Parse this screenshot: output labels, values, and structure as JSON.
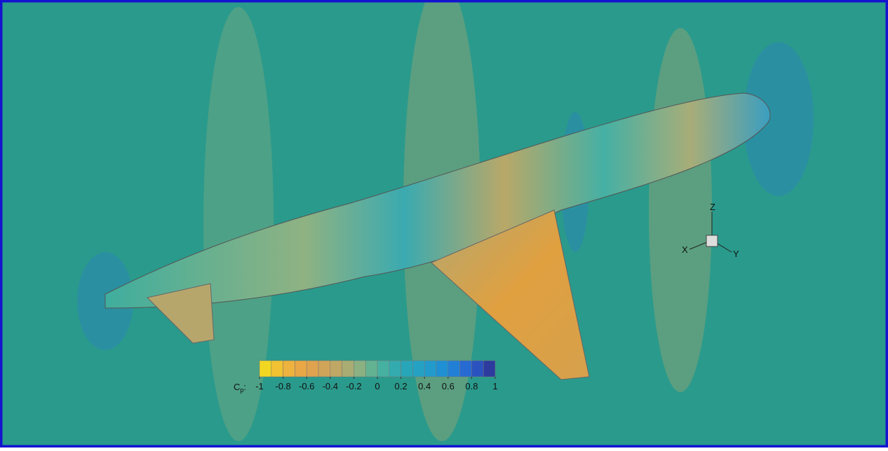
{
  "colorbar": {
    "label": "C",
    "label_subscript": "p",
    "label_suffix": ":",
    "range": [
      -1,
      1
    ],
    "ticks": [
      -1,
      -0.8,
      -0.6,
      -0.4,
      -0.2,
      0,
      0.2,
      0.4,
      0.6,
      0.8,
      1
    ],
    "colors": [
      "#f2e21a",
      "#f0b73a",
      "#e6a24a",
      "#c9a55e",
      "#9fb07a",
      "#4fb49a",
      "#2aa8b4",
      "#23a0c8",
      "#1f8ad8",
      "#2a5fd0",
      "#2d2f8c"
    ]
  },
  "axes_triad": {
    "x": "X",
    "y": "Y",
    "z": "Z"
  }
}
